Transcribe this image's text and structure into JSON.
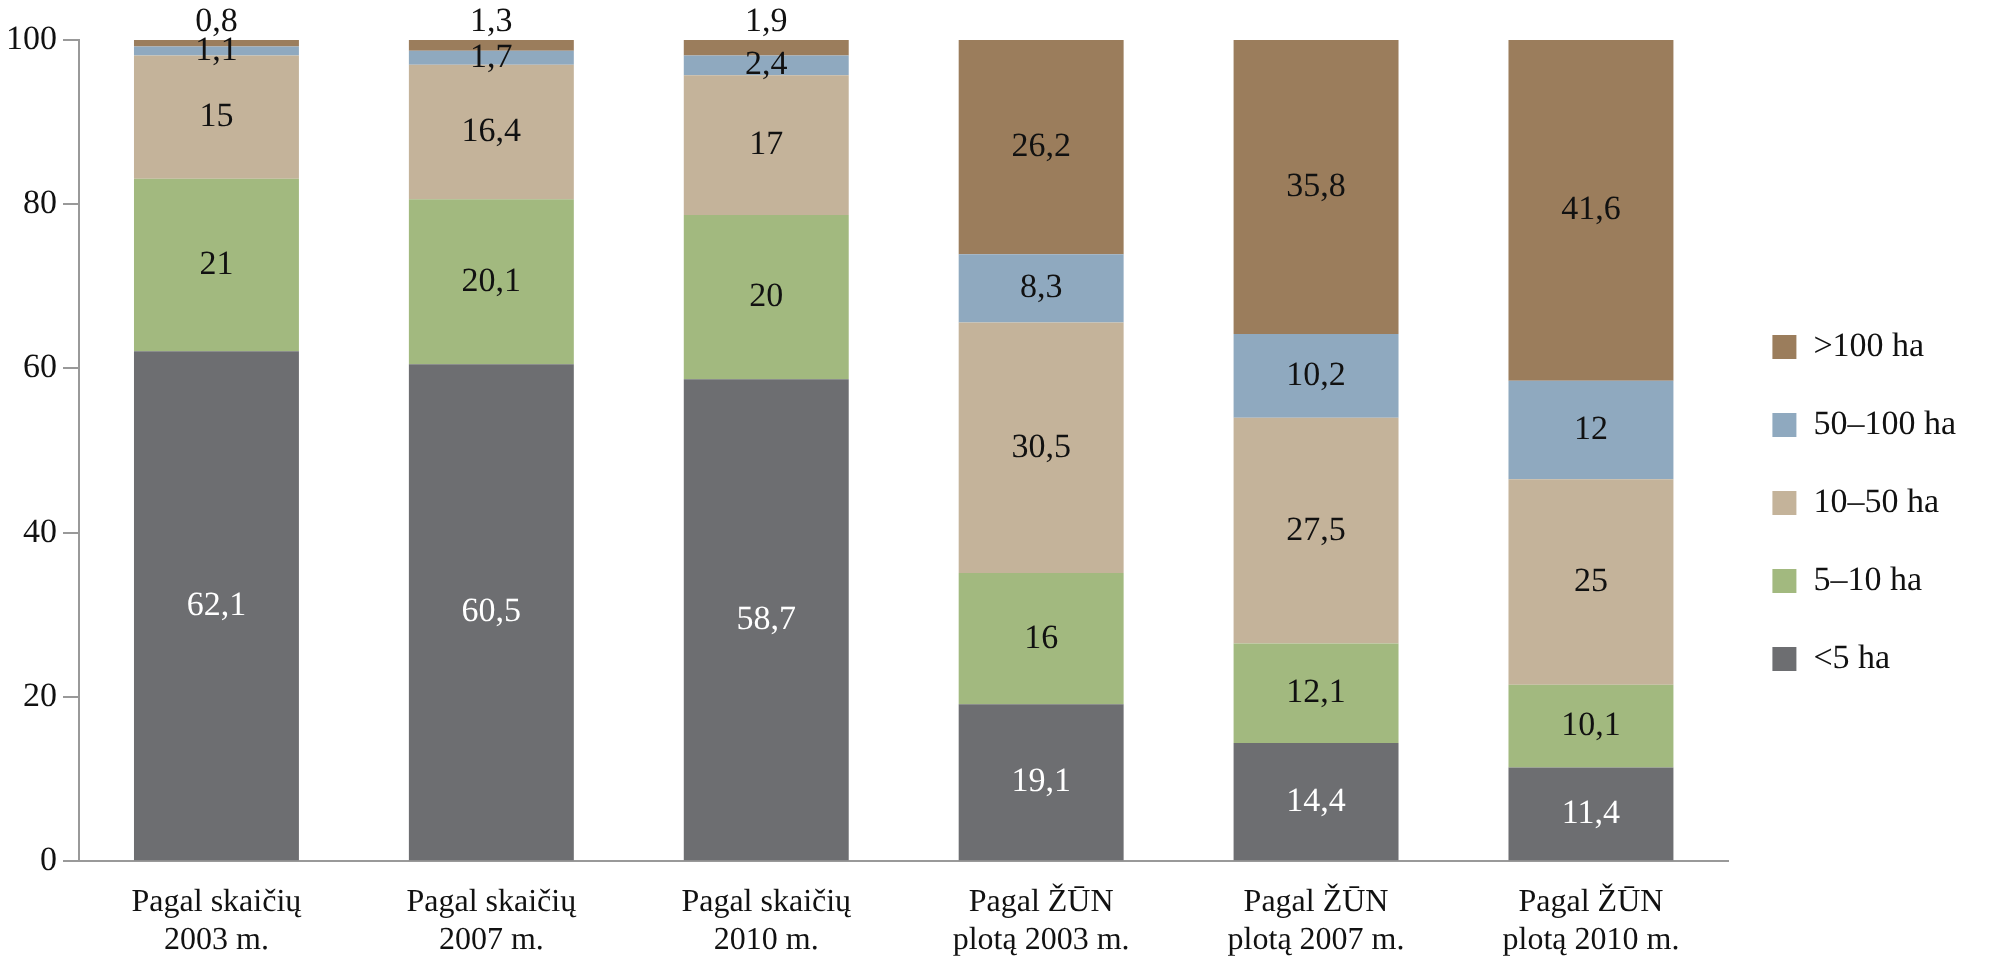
{
  "chart_data": {
    "type": "bar",
    "stacked": true,
    "grid": false,
    "legend": "right",
    "categories": [
      "Pagal skaičių\n2003 m.",
      "Pagal skaičių\n2007 m.",
      "Pagal skaičių\n2010 m.",
      "Pagal ŽŪN\nplotą 2003 m.",
      "Pagal ŽŪN\nplotą 2007 m.",
      "Pagal ŽŪN\nplotą 2010 m."
    ],
    "ylim": [
      0,
      100
    ],
    "yticks": [
      0,
      20,
      40,
      60,
      80,
      100
    ],
    "series": [
      {
        "name": "<5 ha",
        "color": "#6d6e71",
        "values": [
          62.1,
          60.5,
          58.7,
          19.1,
          14.4,
          11.4
        ],
        "value_labels": [
          "62,1",
          "60,5",
          "58,7",
          "19,1",
          "14,4",
          "11,4"
        ]
      },
      {
        "name": "5–10 ha",
        "color": "#a2b97f",
        "values": [
          21,
          20.1,
          20,
          16,
          12.1,
          10.1
        ],
        "value_labels": [
          "21",
          "20,1",
          "20",
          "16",
          "12,1",
          "10,1"
        ]
      },
      {
        "name": "10–50 ha",
        "color": "#c4b39a",
        "values": [
          15,
          16.4,
          17,
          30.5,
          27.5,
          25
        ],
        "value_labels": [
          "15",
          "16,4",
          "17",
          "30,5",
          "27,5",
          "25"
        ]
      },
      {
        "name": "50–100 ha",
        "color": "#8fa9bf",
        "values": [
          1.1,
          1.7,
          2.4,
          8.3,
          10.2,
          12
        ],
        "value_labels": [
          "1,1",
          "1,7",
          "2,4",
          "8,3",
          "10,2",
          "12"
        ]
      },
      {
        "name": ">100 ha",
        "color": "#9b7d5c",
        "values": [
          0.8,
          1.3,
          1.9,
          26.2,
          35.8,
          41.6
        ],
        "value_labels": [
          "0,8",
          "1,3",
          "1,9",
          "26,2",
          "35,8",
          "41,6"
        ]
      }
    ]
  }
}
